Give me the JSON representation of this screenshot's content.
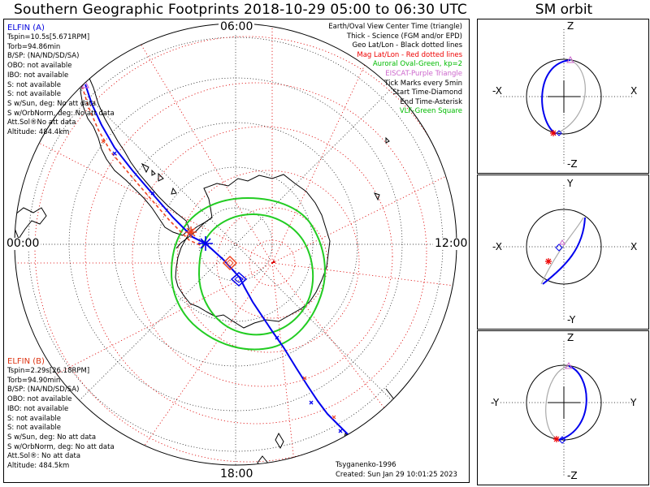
{
  "title": "Southern Geographic Footprints 2018-10-29 05:00 to 06:30 UTC",
  "sm_title": "SM orbit",
  "hour_labels": {
    "top": "06:00",
    "left": "00:00",
    "right": "12:00",
    "bottom": "18:00"
  },
  "elfin_a": {
    "name": "ELFIN (A)",
    "color": "#0000dd",
    "lines": [
      "Tspin=10.5s[5.671RPM]",
      "Torb=94.86min",
      "B/SP: (NA/ND/SD/SA)",
      "OBO: not available",
      "IBO: not available",
      "S: not available",
      "S: not available",
      "S w/Sun, deg: No att data",
      "S w/OrbNorm, deg: No att data",
      "Att.Sol®No att data",
      "Altitude: 484.4km"
    ]
  },
  "elfin_b": {
    "name": "ELFIN (B)",
    "color": "#dd3311",
    "lines": [
      "Tspin=2.29s[26.18RPM]",
      "Torb=94.90min",
      "B/SP: (NA/ND/SD/SA)",
      "OBO: not available",
      "IBO: not available",
      "S: not available",
      "S: not available",
      "S w/Sun, deg: No att data",
      "S w/OrbNorm, deg: No att data",
      "Att.Sol®: No att data",
      "Altitude: 484.5km"
    ]
  },
  "legend": [
    {
      "text": "Earth/Oval View Center Time (triangle)",
      "color": "#000000"
    },
    {
      "text": "Thick - Science (FGM and/or EPD)",
      "color": "#000000"
    },
    {
      "text": "Geo Lat/Lon - Black dotted lines",
      "color": "#000000"
    },
    {
      "text": "Mag Lat/Lon - Red dotted lines",
      "color": "#ee0000"
    },
    {
      "text": "Auroral Oval-Green, kp=2",
      "color": "#00bb00"
    },
    {
      "text": "EISCAT-Purple Triangle",
      "color": "#cc66cc"
    },
    {
      "text": "Tick Marks every 5min",
      "color": "#000000"
    },
    {
      "text": "Start Time-Diamond",
      "color": "#000000"
    },
    {
      "text": "End Time-Asterisk",
      "color": "#000000"
    },
    {
      "text": "VLF-Green Square",
      "color": "#00bb00"
    }
  ],
  "footer": {
    "model": "Tsyganenko-1996",
    "created": "Created: Sun Jan 29 10:01:25 2023"
  },
  "sm_panels": [
    {
      "left": "-X",
      "right": "X",
      "top": "Z",
      "bottom": "-Z"
    },
    {
      "left": "-X",
      "right": "X",
      "top": "Y",
      "bottom": "-Y"
    },
    {
      "left": "-Y",
      "right": "Y",
      "top": "Z",
      "bottom": "-Z"
    }
  ],
  "colors": {
    "elfin_a": "#0000ee",
    "elfin_b": "#ee4422",
    "geo_grid": "#000000",
    "mag_grid": "#dd0000",
    "aurora": "#22cc22",
    "eiscat": "#cc66cc"
  }
}
